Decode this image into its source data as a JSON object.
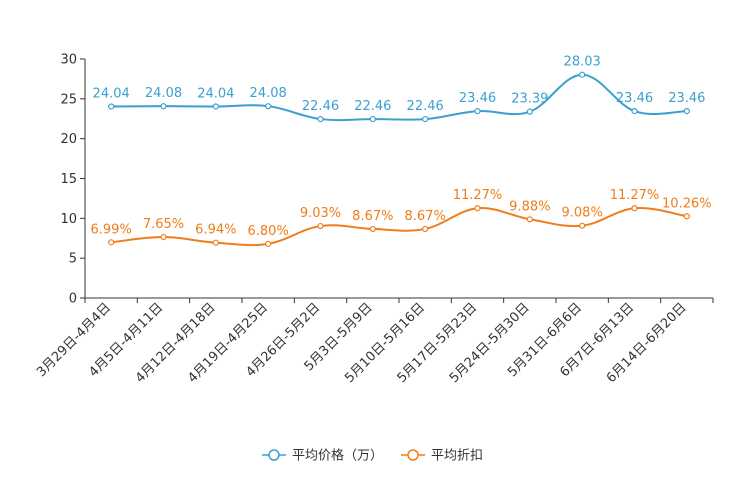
{
  "chart_data": {
    "type": "line",
    "categories": [
      "3月29日-4月4日",
      "4月5日-4月11日",
      "4月12日-4月18日",
      "4月19日-4月25日",
      "4月26日-5月2日",
      "5月3日-5月9日",
      "5月10日-5月16日",
      "5月17日-5月23日",
      "5月24日-5月30日",
      "5月31日-6月6日",
      "6月7日-6月13日",
      "6月14日-6月20日"
    ],
    "ylim": [
      0,
      30
    ],
    "yticks": [
      0,
      5,
      10,
      15,
      20,
      25,
      30
    ],
    "grid": false,
    "legend_position": "bottom-center",
    "series": [
      {
        "name": "平均价格（万）",
        "color": "#3ba0d0",
        "values": [
          24.04,
          24.08,
          24.04,
          24.08,
          22.46,
          22.46,
          22.46,
          23.46,
          23.39,
          28.03,
          23.46,
          23.46
        ],
        "labels": [
          "24.04",
          "24.08",
          "24.04",
          "24.08",
          "22.46",
          "22.46",
          "22.46",
          "23.46",
          "23.39",
          "28.03",
          "23.46",
          "23.46"
        ]
      },
      {
        "name": "平均折扣",
        "color": "#f07d19",
        "values": [
          6.99,
          7.65,
          6.94,
          6.8,
          9.03,
          8.67,
          8.67,
          11.27,
          9.88,
          9.08,
          11.27,
          10.26
        ],
        "labels": [
          "6.99%",
          "7.65%",
          "6.94%",
          "6.80%",
          "9.03%",
          "8.67%",
          "8.67%",
          "11.27%",
          "9.88%",
          "9.08%",
          "11.27%",
          "10.26%"
        ]
      }
    ]
  }
}
